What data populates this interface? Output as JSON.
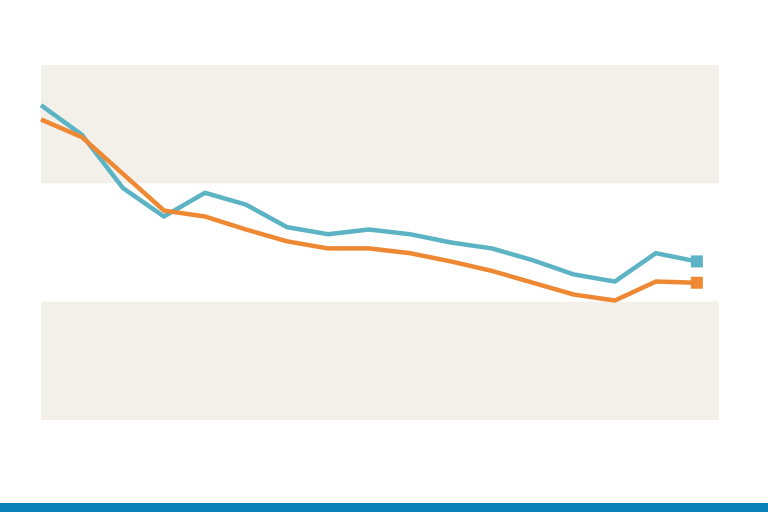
{
  "chart_data": {
    "type": "line",
    "x": [
      0,
      1,
      2,
      3,
      4,
      5,
      6,
      7,
      8,
      9,
      10,
      11,
      12,
      13,
      14,
      15,
      16
    ],
    "xlim": [
      0,
      16.54
    ],
    "ylim": [
      0,
      3
    ],
    "yticks": [
      0,
      1,
      2,
      3
    ],
    "band_color": "#f3f0ea",
    "series": [
      {
        "color": "#5bb3c4",
        "values": [
          2.66,
          2.41,
          1.96,
          1.72,
          1.92,
          1.82,
          1.63,
          1.57,
          1.61,
          1.57,
          1.5,
          1.45,
          1.35,
          1.23,
          1.17,
          1.41,
          1.34
        ]
      },
      {
        "color": "#ee8833",
        "values": [
          2.54,
          2.39,
          2.08,
          1.77,
          1.72,
          1.61,
          1.51,
          1.45,
          1.45,
          1.41,
          1.34,
          1.26,
          1.16,
          1.06,
          1.01,
          1.17,
          1.16
        ]
      }
    ]
  }
}
